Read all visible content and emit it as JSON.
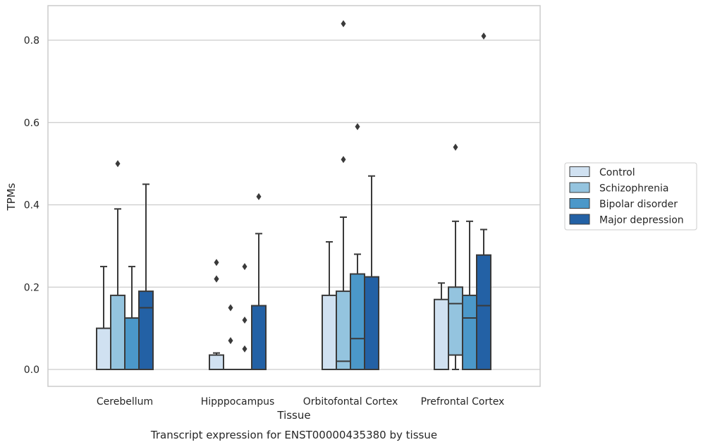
{
  "chart_data": {
    "type": "box",
    "xlabel": "Tissue",
    "ylabel": "TPMs",
    "caption": "Transcript expression for ENST00000435380 by tissue",
    "categories": [
      "Cerebellum",
      "Hipppocampus",
      "Orbitofontal Cortex",
      "Prefrontal Cortex"
    ],
    "ylim": [
      -0.04,
      0.885
    ],
    "yticks": [
      0.0,
      0.2,
      0.4,
      0.6,
      0.8
    ],
    "ytick_labels": [
      "0.0",
      "0.2",
      "0.4",
      "0.6",
      "0.8"
    ],
    "grid": true,
    "legend_position": "right",
    "series": [
      {
        "name": "Control",
        "color": "#d0e1f1",
        "boxes": [
          {
            "q1": 0.0,
            "median": 0.0,
            "q3": 0.1,
            "whisker_low": 0.0,
            "whisker_high": 0.25,
            "outliers": []
          },
          {
            "q1": 0.0,
            "median": 0.0,
            "q3": 0.035,
            "whisker_low": 0.0,
            "whisker_high": 0.04,
            "outliers": [
              0.22,
              0.22,
              0.26
            ]
          },
          {
            "q1": 0.0,
            "median": 0.0,
            "q3": 0.18,
            "whisker_low": 0.0,
            "whisker_high": 0.31,
            "outliers": []
          },
          {
            "q1": 0.0,
            "median": 0.0,
            "q3": 0.17,
            "whisker_low": 0.0,
            "whisker_high": 0.21,
            "outliers": []
          }
        ]
      },
      {
        "name": "Schizophrenia",
        "color": "#94c4df",
        "boxes": [
          {
            "q1": 0.0,
            "median": 0.0,
            "q3": 0.18,
            "whisker_low": 0.0,
            "whisker_high": 0.39,
            "outliers": [
              0.5
            ]
          },
          {
            "q1": 0.0,
            "median": 0.0,
            "q3": 0.0,
            "whisker_low": 0.0,
            "whisker_high": 0.0,
            "outliers": [
              0.07,
              0.15
            ]
          },
          {
            "q1": 0.0,
            "median": 0.02,
            "q3": 0.19,
            "whisker_low": 0.0,
            "whisker_high": 0.37,
            "outliers": [
              0.51,
              0.84
            ]
          },
          {
            "q1": 0.035,
            "median": 0.16,
            "q3": 0.2,
            "whisker_low": 0.0,
            "whisker_high": 0.36,
            "outliers": [
              0.54
            ]
          }
        ]
      },
      {
        "name": "Bipolar disorder",
        "color": "#4b98c9",
        "boxes": [
          {
            "q1": 0.0,
            "median": 0.0,
            "q3": 0.125,
            "whisker_low": 0.0,
            "whisker_high": 0.25,
            "outliers": []
          },
          {
            "q1": 0.0,
            "median": 0.0,
            "q3": 0.0,
            "whisker_low": 0.0,
            "whisker_high": 0.0,
            "outliers": [
              0.05,
              0.12,
              0.25
            ]
          },
          {
            "q1": 0.0,
            "median": 0.075,
            "q3": 0.232,
            "whisker_low": 0.0,
            "whisker_high": 0.28,
            "outliers": [
              0.59
            ]
          },
          {
            "q1": 0.0,
            "median": 0.125,
            "q3": 0.18,
            "whisker_low": 0.0,
            "whisker_high": 0.36,
            "outliers": []
          }
        ]
      },
      {
        "name": "Major depression",
        "color": "#2361a5",
        "boxes": [
          {
            "q1": 0.0,
            "median": 0.15,
            "q3": 0.19,
            "whisker_low": 0.0,
            "whisker_high": 0.45,
            "outliers": []
          },
          {
            "q1": 0.0,
            "median": 0.0,
            "q3": 0.155,
            "whisker_low": 0.0,
            "whisker_high": 0.33,
            "outliers": [
              0.42
            ]
          },
          {
            "q1": 0.0,
            "median": 0.0,
            "q3": 0.225,
            "whisker_low": 0.0,
            "whisker_high": 0.47,
            "outliers": []
          },
          {
            "q1": 0.0,
            "median": 0.155,
            "q3": 0.278,
            "whisker_low": 0.0,
            "whisker_high": 0.34,
            "outliers": [
              0.81
            ]
          }
        ]
      }
    ]
  },
  "style": {
    "line_color": "#3a3a3a",
    "grid_color": "#cccccc",
    "frame_color": "#cccccc"
  }
}
